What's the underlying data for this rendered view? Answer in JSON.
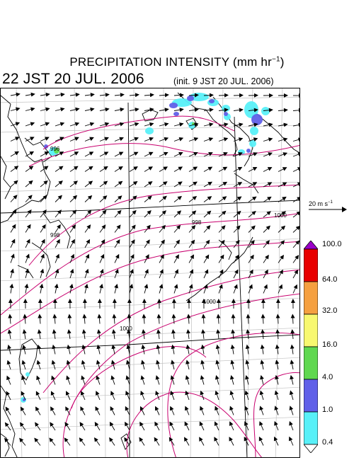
{
  "title": {
    "main": "PRECIPITATION INTENSITY (mm hr",
    "exp": "−1",
    "close": ")"
  },
  "valid_time": "22 JST 20 JUL. 2006",
  "init_time": "(init. 9 JST 20 JUL. 2006)",
  "reference_vector": {
    "base": "20 m s",
    "exp": "−1"
  },
  "colorbar": {
    "labels": [
      "100.0",
      "64.0",
      "32.0",
      "16.0",
      "4.0",
      "1.0",
      "0.4"
    ],
    "colors": [
      "#9a00c8",
      "#e80000",
      "#f5a040",
      "#f8f870",
      "#60d850",
      "#6060e8",
      "#58f0f8",
      "#ffffff"
    ]
  },
  "contours": {
    "color": "#c8006e",
    "labels": [
      "996",
      "998",
      "998",
      "1000",
      "1000",
      "1000"
    ]
  },
  "colors": {
    "coast": "#000000",
    "grid": "#c0c0c0",
    "arrow": "#000000"
  }
}
